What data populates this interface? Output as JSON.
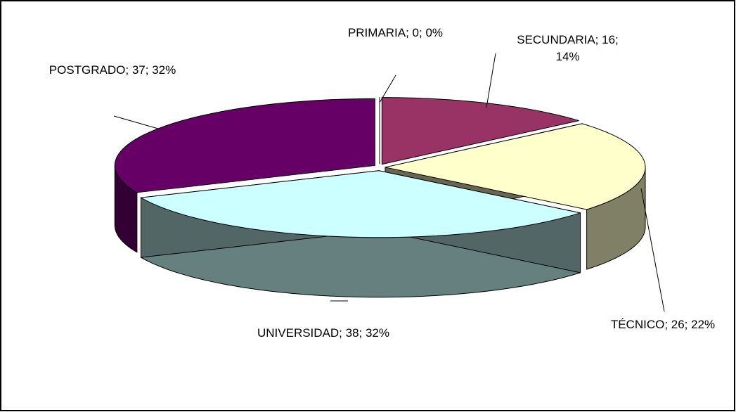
{
  "chart_data": {
    "type": "pie3d",
    "values": [
      0,
      16,
      26,
      38,
      37
    ],
    "value_labels": [
      "PRIMARIA; 0; 0%",
      "SECUNDARIA; 16; 14%",
      "TÉCNICO; 26; 22%",
      "UNIVERSIDAD; 38; 32%",
      "POSTGRADO; 37; 32%"
    ],
    "colors": [
      "#9999ff",
      "#993366",
      "#ffffcc",
      "#ccffff",
      "#660066"
    ]
  }
}
